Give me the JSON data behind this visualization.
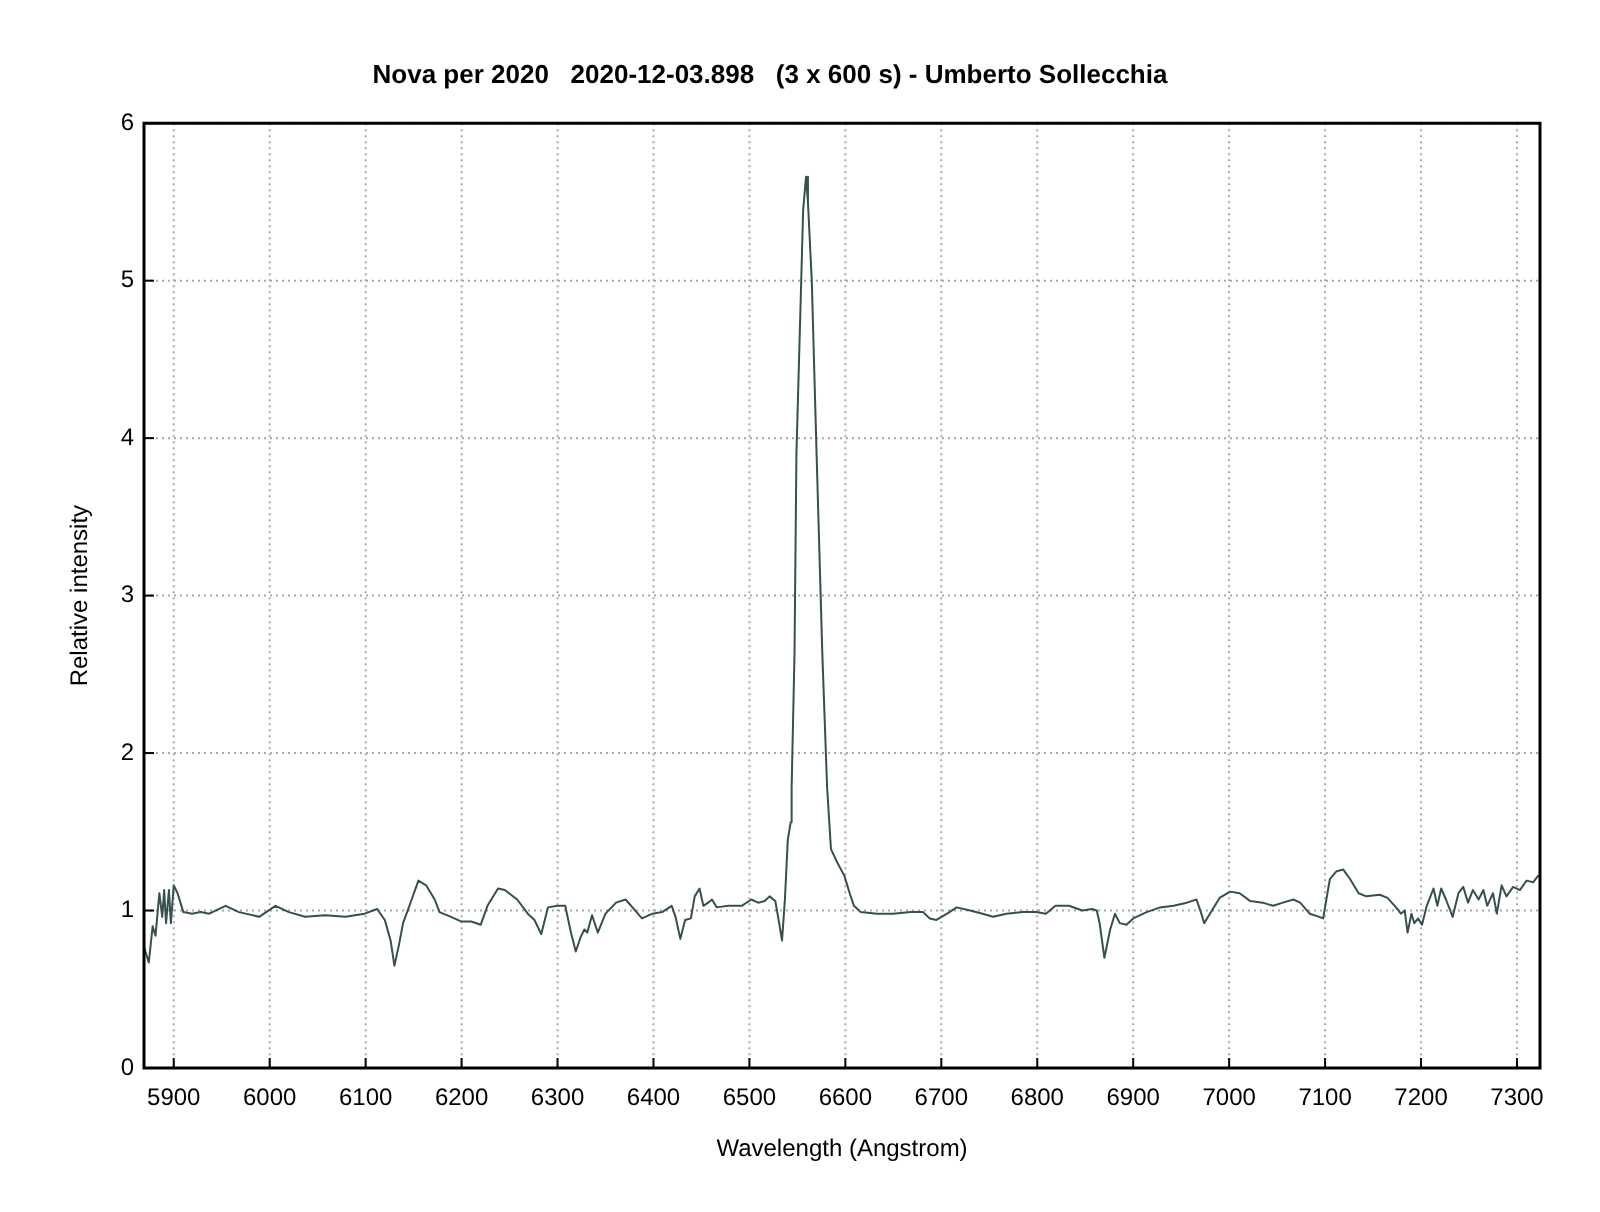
{
  "chart_data": {
    "type": "line",
    "title": "Nova per 2020   2020-12-03.898   (3 x 600 s) - Umberto Sollecchia",
    "xlabel": "Wavelength (Angstrom)",
    "ylabel": "Relative intensity",
    "x": [
      5869,
      5874,
      5878,
      5881,
      5885,
      5888,
      5890,
      5892,
      5895,
      5897,
      5900,
      5904,
      5910,
      5919,
      5928,
      5937,
      5954,
      5968,
      5989,
      6006,
      6020,
      6037,
      6058,
      6079,
      6099,
      6112,
      6120,
      6126,
      6130,
      6135,
      6139,
      6148,
      6155,
      6163,
      6172,
      6177,
      6189,
      6200,
      6210,
      6220,
      6227,
      6238,
      6245,
      6258,
      6269,
      6276,
      6283,
      6290,
      6300,
      6308,
      6314,
      6319,
      6324,
      6328,
      6331,
      6336,
      6342,
      6350,
      6361,
      6371,
      6381,
      6388,
      6399,
      6409,
      6419,
      6423,
      6428,
      6433,
      6439,
      6443,
      6448,
      6452,
      6457,
      6461,
      6466,
      6478,
      6492,
      6502,
      6509,
      6516,
      6521,
      6527,
      6531,
      6534,
      6537,
      6540,
      6543,
      6544,
      6547,
      6549,
      6554,
      6556,
      6559,
      6561,
      6565,
      6570,
      6576,
      6581,
      6585,
      6592,
      6599,
      6605,
      6609,
      6616,
      6633,
      6650,
      6668,
      6681,
      6688,
      6695,
      6706,
      6716,
      6730,
      6743,
      6754,
      6768,
      6785,
      6799,
      6809,
      6819,
      6833,
      6847,
      6857,
      6862,
      6865,
      6870,
      6876,
      6881,
      6886,
      6893,
      6900,
      6914,
      6928,
      6942,
      6956,
      6966,
      6971,
      6974,
      6980,
      6990,
      7001,
      7011,
      7022,
      7035,
      7046,
      7056,
      7067,
      7074,
      7084,
      7094,
      7098,
      7105,
      7112,
      7119,
      7126,
      7135,
      7143,
      7157,
      7165,
      7174,
      7179,
      7183,
      7186,
      7190,
      7193,
      7197,
      7201,
      7206,
      7213,
      7217,
      7221,
      7226,
      7233,
      7239,
      7244,
      7249,
      7254,
      7260,
      7265,
      7269,
      7275,
      7279,
      7284,
      7289,
      7296,
      7303,
      7310,
      7317,
      7322
    ],
    "values": [
      0.77,
      0.67,
      0.9,
      0.84,
      1.11,
      0.96,
      1.13,
      0.92,
      1.13,
      0.92,
      1.16,
      1.11,
      0.99,
      0.98,
      0.99,
      0.98,
      1.03,
      0.99,
      0.96,
      1.03,
      0.99,
      0.96,
      0.97,
      0.96,
      0.98,
      1.01,
      0.94,
      0.81,
      0.65,
      0.79,
      0.92,
      1.07,
      1.19,
      1.16,
      1.07,
      0.99,
      0.96,
      0.93,
      0.93,
      0.91,
      1.03,
      1.14,
      1.13,
      1.07,
      0.98,
      0.94,
      0.85,
      1.02,
      1.03,
      1.03,
      0.86,
      0.74,
      0.83,
      0.88,
      0.86,
      0.97,
      0.86,
      0.98,
      1.05,
      1.07,
      1.0,
      0.95,
      0.98,
      0.99,
      1.03,
      0.96,
      0.82,
      0.94,
      0.95,
      1.09,
      1.14,
      1.03,
      1.05,
      1.07,
      1.02,
      1.03,
      1.03,
      1.07,
      1.05,
      1.06,
      1.09,
      1.06,
      0.92,
      0.81,
      1.07,
      1.45,
      1.56,
      1.78,
      2.63,
      3.9,
      5.0,
      5.45,
      5.66,
      5.5,
      5.0,
      3.9,
      2.63,
      1.78,
      1.39,
      1.3,
      1.22,
      1.1,
      1.03,
      0.99,
      0.98,
      0.98,
      0.99,
      0.99,
      0.95,
      0.94,
      0.98,
      1.02,
      1.0,
      0.98,
      0.96,
      0.98,
      0.99,
      0.99,
      0.98,
      1.03,
      1.03,
      1.0,
      1.01,
      1.0,
      0.92,
      0.7,
      0.88,
      0.98,
      0.92,
      0.91,
      0.95,
      0.99,
      1.02,
      1.03,
      1.05,
      1.07,
      0.98,
      0.92,
      0.98,
      1.08,
      1.12,
      1.11,
      1.06,
      1.05,
      1.03,
      1.05,
      1.07,
      1.05,
      0.98,
      0.96,
      0.95,
      1.2,
      1.25,
      1.26,
      1.2,
      1.11,
      1.09,
      1.1,
      1.08,
      1.02,
      0.98,
      1.0,
      0.86,
      0.98,
      0.92,
      0.95,
      0.91,
      1.03,
      1.14,
      1.03,
      1.14,
      1.07,
      0.96,
      1.11,
      1.15,
      1.05,
      1.13,
      1.07,
      1.13,
      1.03,
      1.11,
      0.98,
      1.16,
      1.09,
      1.15,
      1.13,
      1.19,
      1.18,
      1.22
    ],
    "color": "#35504e",
    "marker": "none",
    "xlim": [
      5869,
      7324
    ],
    "xticks": [
      5900,
      6000,
      6100,
      6200,
      6300,
      6400,
      6500,
      6600,
      6700,
      6800,
      6900,
      7000,
      7100,
      7200,
      7300
    ],
    "ylim": [
      0,
      6
    ],
    "yticks": [
      0,
      1,
      2,
      3,
      4,
      5,
      6
    ],
    "grid": true
  }
}
